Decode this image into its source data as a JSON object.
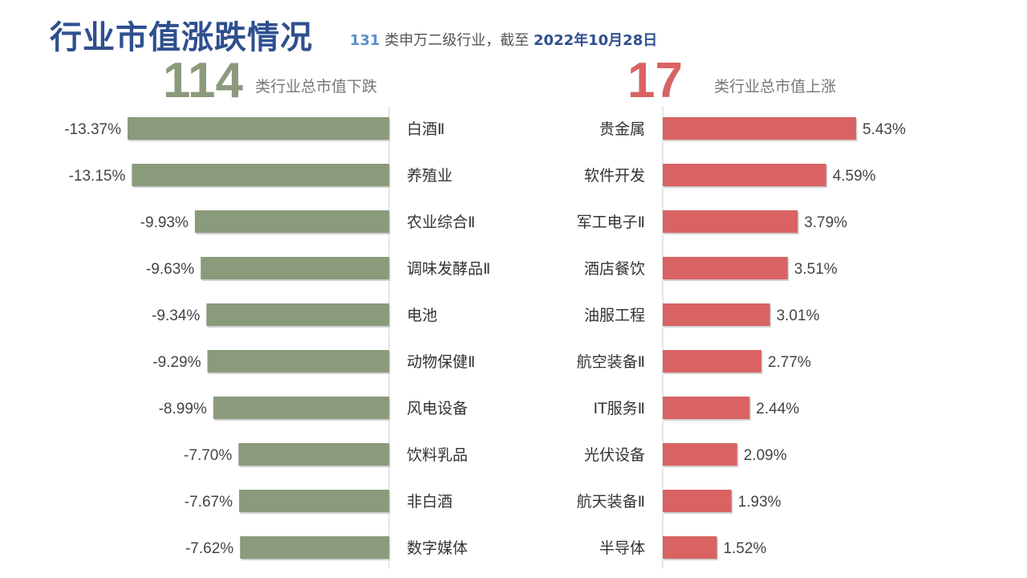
{
  "header": {
    "title": "行业市值涨跌情况",
    "subtitle_count": "131",
    "subtitle_text": " 类申万二级行业，截至 ",
    "subtitle_date": "2022年10月28日"
  },
  "summary": {
    "down_count": "114",
    "down_label": "类行业总市值下跌",
    "up_count": "17",
    "up_label": "类行业总市值上涨"
  },
  "colors": {
    "down": "#8a9a7b",
    "up": "#d96363",
    "axis": "#cccccc"
  },
  "chart_data": [
    {
      "type": "bar",
      "orientation": "horizontal",
      "categories": [
        "白酒Ⅱ",
        "养殖业",
        "农业综合Ⅱ",
        "调味发酵品Ⅱ",
        "电池",
        "动物保健Ⅱ",
        "风电设备",
        "饮料乳品",
        "非白酒",
        "数字媒体"
      ],
      "values": [
        -13.37,
        -13.15,
        -9.93,
        -9.63,
        -9.34,
        -9.29,
        -8.99,
        -7.7,
        -7.67,
        -7.62
      ],
      "labels": [
        "-13.37%",
        "-13.15%",
        "-9.93%",
        "-9.63%",
        "-9.34%",
        "-9.29%",
        "-8.99%",
        "-7.70%",
        "-7.67%",
        "-7.62%"
      ],
      "xlim": [
        -13.37,
        0
      ]
    },
    {
      "type": "bar",
      "orientation": "horizontal",
      "categories": [
        "贵金属",
        "软件开发",
        "军工电子Ⅱ",
        "酒店餐饮",
        "油服工程",
        "航空装备Ⅱ",
        "IT服务Ⅱ",
        "光伏设备",
        "航天装备Ⅱ",
        "半导体"
      ],
      "values": [
        5.43,
        4.59,
        3.79,
        3.51,
        3.01,
        2.77,
        2.44,
        2.09,
        1.93,
        1.52
      ],
      "labels": [
        "5.43%",
        "4.59%",
        "3.79%",
        "3.51%",
        "3.01%",
        "2.77%",
        "2.44%",
        "2.09%",
        "1.93%",
        "1.52%"
      ],
      "xlim": [
        0,
        5.43
      ]
    }
  ]
}
